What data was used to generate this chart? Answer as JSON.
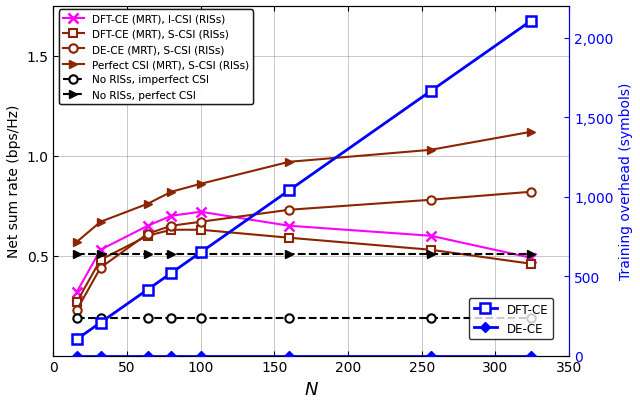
{
  "N": [
    16,
    32,
    64,
    80,
    100,
    160,
    256,
    324
  ],
  "dft_ce_mrt_icsi": [
    0.32,
    0.53,
    0.65,
    0.7,
    0.72,
    0.65,
    0.6,
    0.49
  ],
  "dft_ce_mrt_scsi": [
    0.27,
    0.48,
    0.6,
    0.63,
    0.63,
    0.59,
    0.53,
    0.46
  ],
  "de_ce_mrt_scsi": [
    0.23,
    0.44,
    0.61,
    0.65,
    0.67,
    0.73,
    0.78,
    0.82
  ],
  "perfect_csi_mrt_scsi": [
    0.57,
    0.67,
    0.76,
    0.82,
    0.86,
    0.97,
    1.03,
    1.12
  ],
  "no_ris_imperfect": [
    0.19,
    0.19,
    0.19,
    0.19,
    0.19,
    0.19,
    0.19,
    0.19
  ],
  "no_ris_perfect": [
    0.51,
    0.51,
    0.51,
    0.51,
    0.51,
    0.51,
    0.51,
    0.51
  ],
  "N_overhead": [
    16,
    32,
    64,
    80,
    100,
    160,
    256,
    324
  ],
  "dft_ce_overhead": [
    104,
    208,
    416,
    520,
    650,
    1040,
    1664,
    2106
  ],
  "de_ce_overhead": [
    0,
    0,
    0,
    0,
    0,
    0,
    0,
    0
  ],
  "color_magenta": "#FF00FF",
  "color_brown": "#8B2500",
  "color_blue": "#0000FF",
  "color_black": "#000000",
  "xlabel": "$N$",
  "ylabel_left": "Net sum rate (bps/Hz)",
  "ylabel_right": "Training overhead (symbols)",
  "ylim_left": [
    0.0,
    1.75
  ],
  "ylim_right": [
    0,
    2200
  ],
  "xlim": [
    0,
    350
  ],
  "yticks_left": [
    0.5,
    1.0,
    1.5
  ],
  "yticks_right": [
    0,
    500,
    1000,
    1500,
    2000
  ],
  "xticks": [
    0,
    50,
    100,
    150,
    200,
    250,
    300,
    350
  ],
  "legend1_labels": [
    "DFT-CE (MRT), I-CSI (RISs)",
    "DFT-CE (MRT), S-CSI (RISs)",
    "DE-CE (MRT), S-CSI (RISs)",
    "Perfect CSI (MRT), S-CSI (RISs)",
    "No RISs, imperfect CSI",
    "No RISs, perfect CSI"
  ],
  "legend2_labels": [
    "DFT-CE",
    "DE-CE"
  ]
}
